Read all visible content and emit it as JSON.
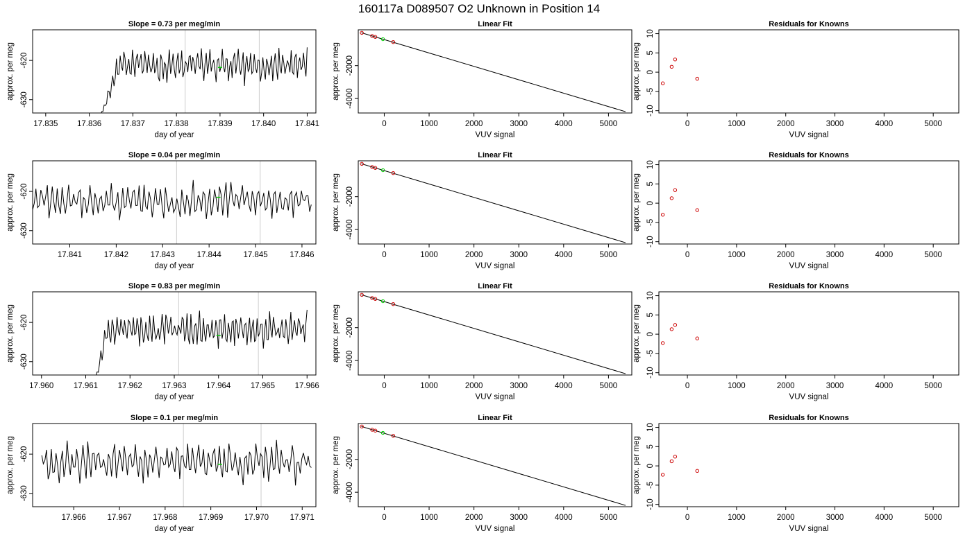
{
  "page": {
    "title": "160117a     D089507   O2 Unknown in Position  14"
  },
  "style": {
    "line_color": "#000000",
    "known_point_color": "#cc0000",
    "unknown_point_color": "#00cc00",
    "vline_color": "#cccccc"
  },
  "chart_data": [
    {
      "type": "line",
      "title": "Slope =  0.73  per meg/min",
      "xlabel": "day of year",
      "ylabel": "approx. per meg",
      "xlim": [
        17.8347,
        17.8412
      ],
      "ylim": [
        -633.4,
        -612.2
      ],
      "xticks": [
        17.835,
        17.836,
        17.837,
        17.838,
        17.839,
        17.84,
        17.841
      ],
      "xtick_labels": [
        "17.835",
        "17.836",
        "17.837",
        "17.838",
        "17.839",
        "17.840",
        "17.841"
      ],
      "yticks": [
        -630,
        -620
      ],
      "ytick_labels": [
        "-630",
        "-620"
      ],
      "x_start": 17.8362,
      "x_end": 17.841,
      "base": -621.2,
      "amp": 2.8,
      "ramp_from": -636,
      "ramp_len": 0.0005,
      "seed": 11,
      "vlines": [
        17.8382,
        17.8399
      ],
      "marker": {
        "x": 17.839,
        "y": -621.8
      }
    },
    {
      "type": "scatter",
      "title": "Linear Fit",
      "xlabel": "VUV signal",
      "ylabel": "approx. per meg",
      "xlim": [
        -580,
        5520
      ],
      "ylim": [
        -4880,
        180
      ],
      "xticks": [
        0,
        1000,
        2000,
        3000,
        4000,
        5000
      ],
      "xtick_labels": [
        "0",
        "1000",
        "2000",
        "3000",
        "4000",
        "5000"
      ],
      "yticks": [
        -4000,
        -2000
      ],
      "ytick_labels": [
        "-4000",
        "-2000"
      ],
      "fit_line": {
        "x": [
          -510,
          5380
        ],
        "y": [
          0,
          -4800
        ]
      },
      "knowns": {
        "x": [
          -500,
          -270,
          -200,
          200
        ],
        "y": [
          -5,
          -200,
          -252,
          -565
        ]
      },
      "unknown": {
        "x": [
          -30
        ],
        "y": [
          -390
        ]
      }
    },
    {
      "type": "scatter",
      "title": "Residuals for Knowns",
      "xlabel": "VUV signal",
      "ylabel": "approx. per meg",
      "xlim": [
        -580,
        5520
      ],
      "ylim": [
        -10.6,
        11
      ],
      "xticks": [
        0,
        1000,
        2000,
        3000,
        4000,
        5000
      ],
      "xtick_labels": [
        "0",
        "1000",
        "2000",
        "3000",
        "4000",
        "5000"
      ],
      "yticks": [
        -10,
        -5,
        0,
        5,
        10
      ],
      "ytick_labels": [
        "-10",
        "-5",
        "0",
        "5",
        "10"
      ],
      "points": {
        "x": [
          -500,
          -320,
          -250,
          200
        ],
        "y": [
          -2.9,
          1.4,
          3.3,
          -1.7
        ]
      }
    },
    {
      "type": "line",
      "title": "Slope =  0.04  per meg/min",
      "xlabel": "day of year",
      "ylabel": "approx. per meg",
      "xlim": [
        17.8402,
        17.8463
      ],
      "ylim": [
        -633.4,
        -612.2
      ],
      "xticks": [
        17.841,
        17.842,
        17.843,
        17.844,
        17.845,
        17.846
      ],
      "xtick_labels": [
        "17.841",
        "17.842",
        "17.843",
        "17.844",
        "17.845",
        "17.846"
      ],
      "yticks": [
        -630,
        -620
      ],
      "ytick_labels": [
        "-630",
        "-620"
      ],
      "x_start": 17.8402,
      "x_end": 17.8462,
      "base": -622.5,
      "amp": 3.0,
      "ramp_from": null,
      "ramp_len": 0,
      "seed": 23,
      "vlines": [
        17.8433,
        17.8451
      ],
      "marker": {
        "x": 17.8442,
        "y": -621.5
      }
    },
    {
      "type": "scatter",
      "title": "Linear Fit",
      "xlabel": "VUV signal",
      "ylabel": "approx. per meg",
      "xlim": [
        -580,
        5520
      ],
      "ylim": [
        -4880,
        180
      ],
      "xticks": [
        0,
        1000,
        2000,
        3000,
        4000,
        5000
      ],
      "xtick_labels": [
        "0",
        "1000",
        "2000",
        "3000",
        "4000",
        "5000"
      ],
      "yticks": [
        -4000,
        -2000
      ],
      "ytick_labels": [
        "-4000",
        "-2000"
      ],
      "fit_line": {
        "x": [
          -510,
          5380
        ],
        "y": [
          0,
          -4800
        ]
      },
      "knowns": {
        "x": [
          -500,
          -270,
          -200,
          200
        ],
        "y": [
          -5,
          -200,
          -252,
          -565
        ]
      },
      "unknown": {
        "x": [
          -30
        ],
        "y": [
          -390
        ]
      }
    },
    {
      "type": "scatter",
      "title": "Residuals for Knowns",
      "xlabel": "VUV signal",
      "ylabel": "approx. per meg",
      "xlim": [
        -580,
        5520
      ],
      "ylim": [
        -10.6,
        11
      ],
      "xticks": [
        0,
        1000,
        2000,
        3000,
        4000,
        5000
      ],
      "xtick_labels": [
        "0",
        "1000",
        "2000",
        "3000",
        "4000",
        "5000"
      ],
      "yticks": [
        -10,
        -5,
        0,
        5,
        10
      ],
      "ytick_labels": [
        "-10",
        "-5",
        "0",
        "5",
        "10"
      ],
      "points": {
        "x": [
          -500,
          -320,
          -250,
          200
        ],
        "y": [
          -3.0,
          1.3,
          3.4,
          -1.8
        ]
      }
    },
    {
      "type": "line",
      "title": "Slope =  0.83  per meg/min",
      "xlabel": "day of year",
      "ylabel": "approx. per meg",
      "xlim": [
        17.9598,
        17.9662
      ],
      "ylim": [
        -633.4,
        -612.2
      ],
      "xticks": [
        17.96,
        17.961,
        17.962,
        17.963,
        17.964,
        17.965,
        17.966
      ],
      "xtick_labels": [
        "17.960",
        "17.961",
        "17.962",
        "17.963",
        "17.964",
        "17.965",
        "17.966"
      ],
      "yticks": [
        -630,
        -620
      ],
      "ytick_labels": [
        "-630",
        "-620"
      ],
      "x_start": 17.9612,
      "x_end": 17.966,
      "base": -621.8,
      "amp": 3.0,
      "ramp_from": -636,
      "ramp_len": 0.0003,
      "seed": 37,
      "vlines": [
        17.9631,
        17.9649
      ],
      "marker": {
        "x": 17.964,
        "y": -623.3
      }
    },
    {
      "type": "scatter",
      "title": "Linear Fit",
      "xlabel": "VUV signal",
      "ylabel": "approx. per meg",
      "xlim": [
        -580,
        5520
      ],
      "ylim": [
        -4880,
        180
      ],
      "xticks": [
        0,
        1000,
        2000,
        3000,
        4000,
        5000
      ],
      "xtick_labels": [
        "0",
        "1000",
        "2000",
        "3000",
        "4000",
        "5000"
      ],
      "yticks": [
        -4000,
        -2000
      ],
      "ytick_labels": [
        "-4000",
        "-2000"
      ],
      "fit_line": {
        "x": [
          -510,
          5380
        ],
        "y": [
          0,
          -4800
        ]
      },
      "knowns": {
        "x": [
          -500,
          -270,
          -200,
          200
        ],
        "y": [
          -5,
          -200,
          -252,
          -565
        ]
      },
      "unknown": {
        "x": [
          -30
        ],
        "y": [
          -390
        ]
      }
    },
    {
      "type": "scatter",
      "title": "Residuals for Knowns",
      "xlabel": "VUV signal",
      "ylabel": "approx. per meg",
      "xlim": [
        -580,
        5520
      ],
      "ylim": [
        -10.6,
        11
      ],
      "xticks": [
        0,
        1000,
        2000,
        3000,
        4000,
        5000
      ],
      "xtick_labels": [
        "0",
        "1000",
        "2000",
        "3000",
        "4000",
        "5000"
      ],
      "yticks": [
        -10,
        -5,
        0,
        5,
        10
      ],
      "ytick_labels": [
        "-10",
        "-5",
        "0",
        "5",
        "10"
      ],
      "points": {
        "x": [
          -500,
          -320,
          -250,
          200
        ],
        "y": [
          -2.3,
          1.3,
          2.4,
          -1.1
        ]
      }
    },
    {
      "type": "line",
      "title": "Slope =  0.1  per meg/min",
      "xlabel": "day of year",
      "ylabel": "approx. per meg",
      "xlim": [
        17.9651,
        17.9713
      ],
      "ylim": [
        -633.4,
        -612.2
      ],
      "xticks": [
        17.966,
        17.967,
        17.968,
        17.969,
        17.97,
        17.971
      ],
      "xtick_labels": [
        "17.966",
        "17.967",
        "17.968",
        "17.969",
        "17.970",
        "17.971"
      ],
      "yticks": [
        -630,
        -620
      ],
      "ytick_labels": [
        "-630",
        "-620"
      ],
      "x_start": 17.9653,
      "x_end": 17.9712,
      "base": -622.0,
      "amp": 3.4,
      "ramp_from": null,
      "ramp_len": 0,
      "seed": 53,
      "vlines": [
        17.9684,
        17.9701
      ],
      "marker": {
        "x": 17.9692,
        "y": -622.6
      }
    },
    {
      "type": "scatter",
      "title": "Linear Fit",
      "xlabel": "VUV signal",
      "ylabel": "approx. per meg",
      "xlim": [
        -580,
        5520
      ],
      "ylim": [
        -4880,
        180
      ],
      "xticks": [
        0,
        1000,
        2000,
        3000,
        4000,
        5000
      ],
      "xtick_labels": [
        "0",
        "1000",
        "2000",
        "3000",
        "4000",
        "5000"
      ],
      "yticks": [
        -4000,
        -2000
      ],
      "ytick_labels": [
        "-4000",
        "-2000"
      ],
      "fit_line": {
        "x": [
          -510,
          5380
        ],
        "y": [
          0,
          -4800
        ]
      },
      "knowns": {
        "x": [
          -500,
          -270,
          -200,
          200
        ],
        "y": [
          -5,
          -200,
          -252,
          -565
        ]
      },
      "unknown": {
        "x": [
          -30
        ],
        "y": [
          -390
        ]
      }
    },
    {
      "type": "scatter",
      "title": "Residuals for Knowns",
      "xlabel": "VUV signal",
      "ylabel": "approx. per meg",
      "xlim": [
        -580,
        5520
      ],
      "ylim": [
        -10.6,
        11
      ],
      "xticks": [
        0,
        1000,
        2000,
        3000,
        4000,
        5000
      ],
      "xtick_labels": [
        "0",
        "1000",
        "2000",
        "3000",
        "4000",
        "5000"
      ],
      "yticks": [
        -10,
        -5,
        0,
        5,
        10
      ],
      "ytick_labels": [
        "-10",
        "-5",
        "0",
        "5",
        "10"
      ],
      "points": {
        "x": [
          -500,
          -320,
          -250,
          200
        ],
        "y": [
          -2.3,
          1.2,
          2.4,
          -1.3
        ]
      }
    }
  ]
}
